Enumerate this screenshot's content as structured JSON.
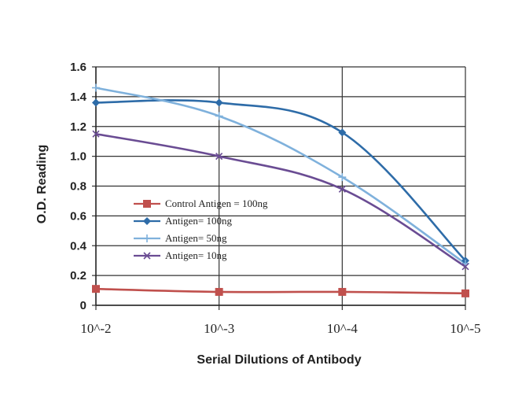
{
  "chart_data": {
    "type": "line",
    "title": "",
    "xlabel": "Serial Dilutions of Antibody",
    "ylabel": "O.D. Reading",
    "categories": [
      "10^-2",
      "10^-3",
      "10^-4",
      "10^-5"
    ],
    "ylim": [
      0,
      1.6
    ],
    "yticks": [
      "0",
      "0.2",
      "0.4",
      "0.6",
      "0.8",
      "1.0",
      "1.2",
      "1.4",
      "1.6"
    ],
    "grid": true,
    "legend_position": "center-left",
    "series": [
      {
        "name": "Control Antigen = 100ng",
        "values": [
          0.11,
          0.09,
          0.09,
          0.08
        ],
        "color": "#c0504d",
        "marker": "square"
      },
      {
        "name": "Antigen= 100ng",
        "values": [
          1.36,
          1.36,
          1.16,
          0.3
        ],
        "color": "#2e6ca8",
        "marker": "diamond"
      },
      {
        "name": "Antigen= 50ng",
        "values": [
          1.46,
          1.27,
          0.86,
          0.28
        ],
        "color": "#7fb1dc",
        "marker": "plus"
      },
      {
        "name": "Antigen= 10ng",
        "values": [
          1.15,
          1.0,
          0.78,
          0.26
        ],
        "color": "#6a4c93",
        "marker": "cross"
      }
    ]
  }
}
